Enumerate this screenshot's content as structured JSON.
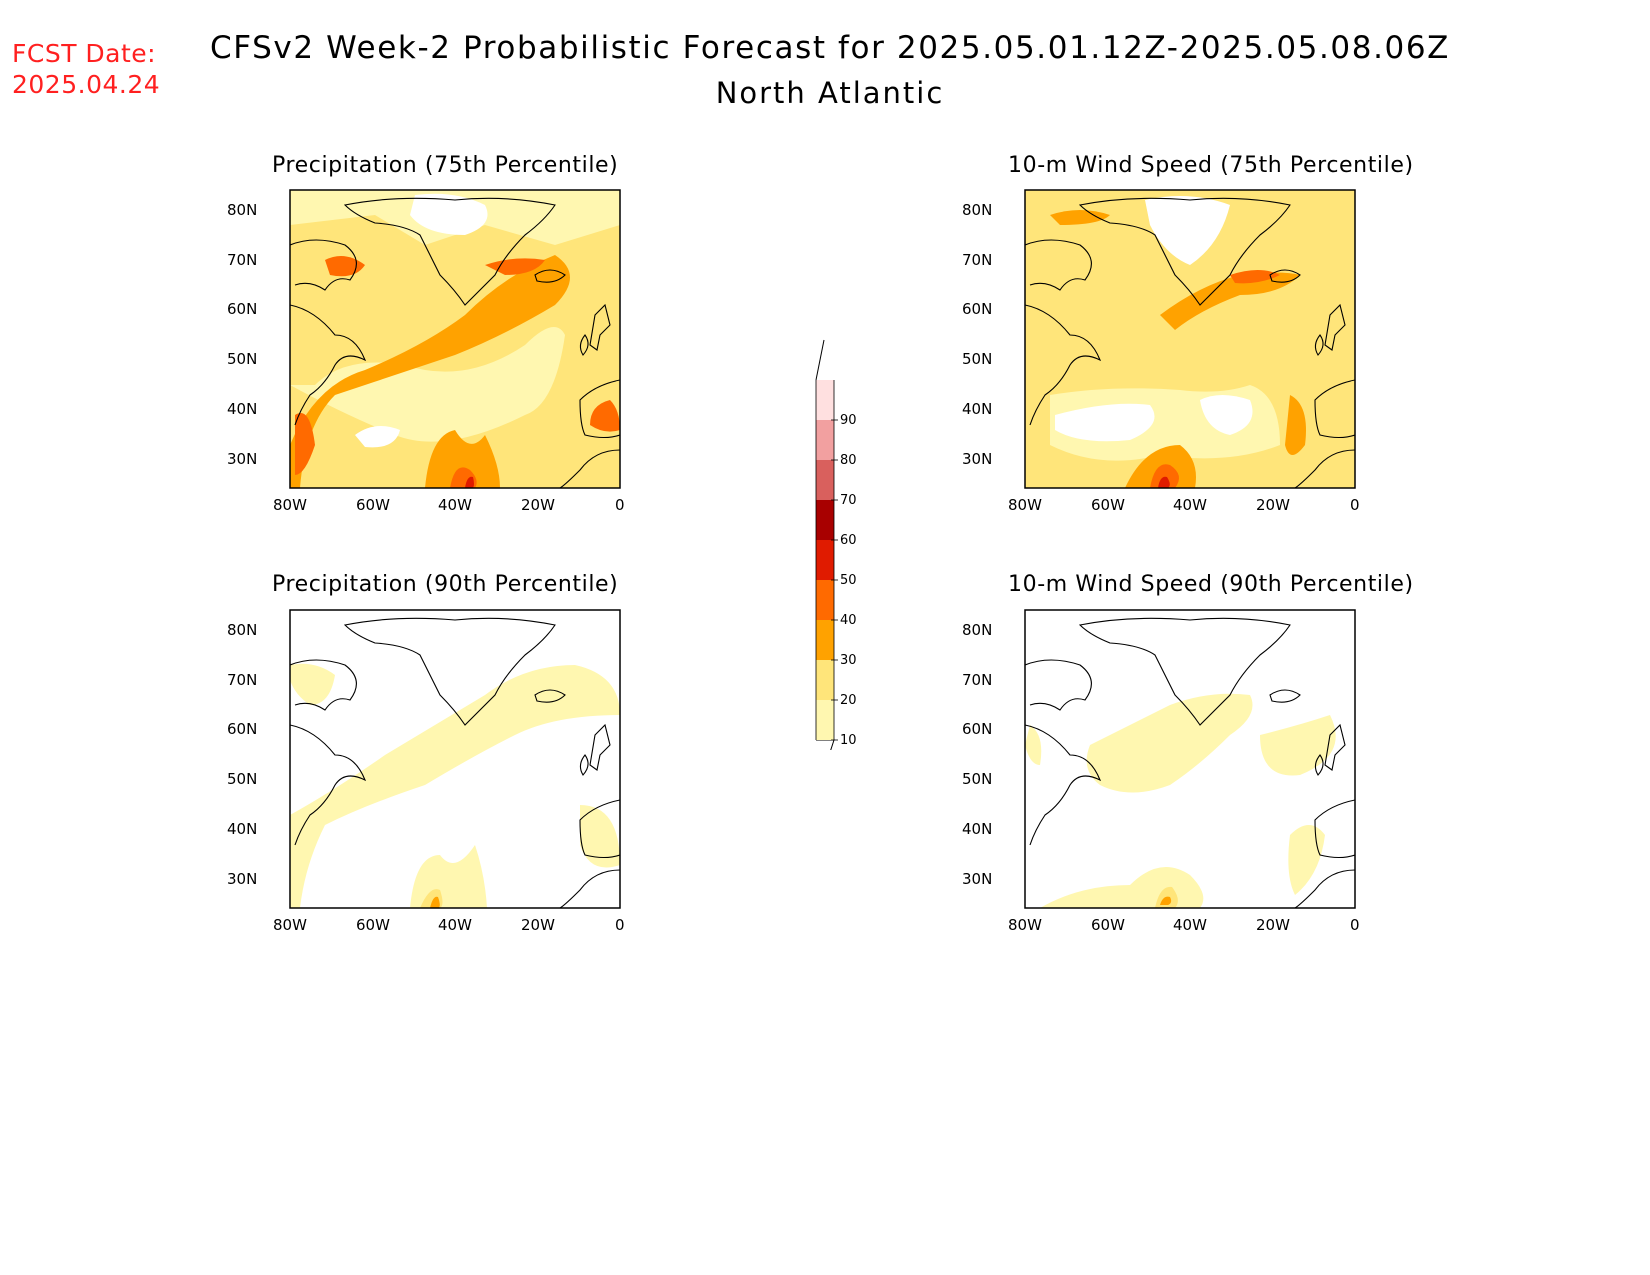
{
  "fcst_date": {
    "label": "FCST Date:",
    "value": "2025.04.24"
  },
  "title": "CFSv2 Week-2 Probabilistic Forecast for 2025.05.01.12Z-2025.05.08.06Z",
  "subtitle": "North Atlantic",
  "panels": [
    {
      "title": "Precipitation (75th Percentile)"
    },
    {
      "title": "10-m Wind Speed (75th Percentile)"
    },
    {
      "title": "Precipitation (90th Percentile)"
    },
    {
      "title": "10-m Wind Speed (90th Percentile)"
    }
  ],
  "axes": {
    "lat_ticks": [
      "80N",
      "70N",
      "60N",
      "50N",
      "40N",
      "30N"
    ],
    "lon_ticks": [
      "80W",
      "60W",
      "40W",
      "20W",
      "0"
    ]
  },
  "colorbar": {
    "levels": [
      "10",
      "20",
      "30",
      "40",
      "50",
      "60",
      "70",
      "80",
      "90"
    ],
    "colors": [
      "#fff7b0",
      "#ffe57a",
      "#ffa200",
      "#ff6a00",
      "#e01b00",
      "#a80000",
      "#d9605d",
      "#f2a0a0",
      "#ffe0e0"
    ]
  }
}
